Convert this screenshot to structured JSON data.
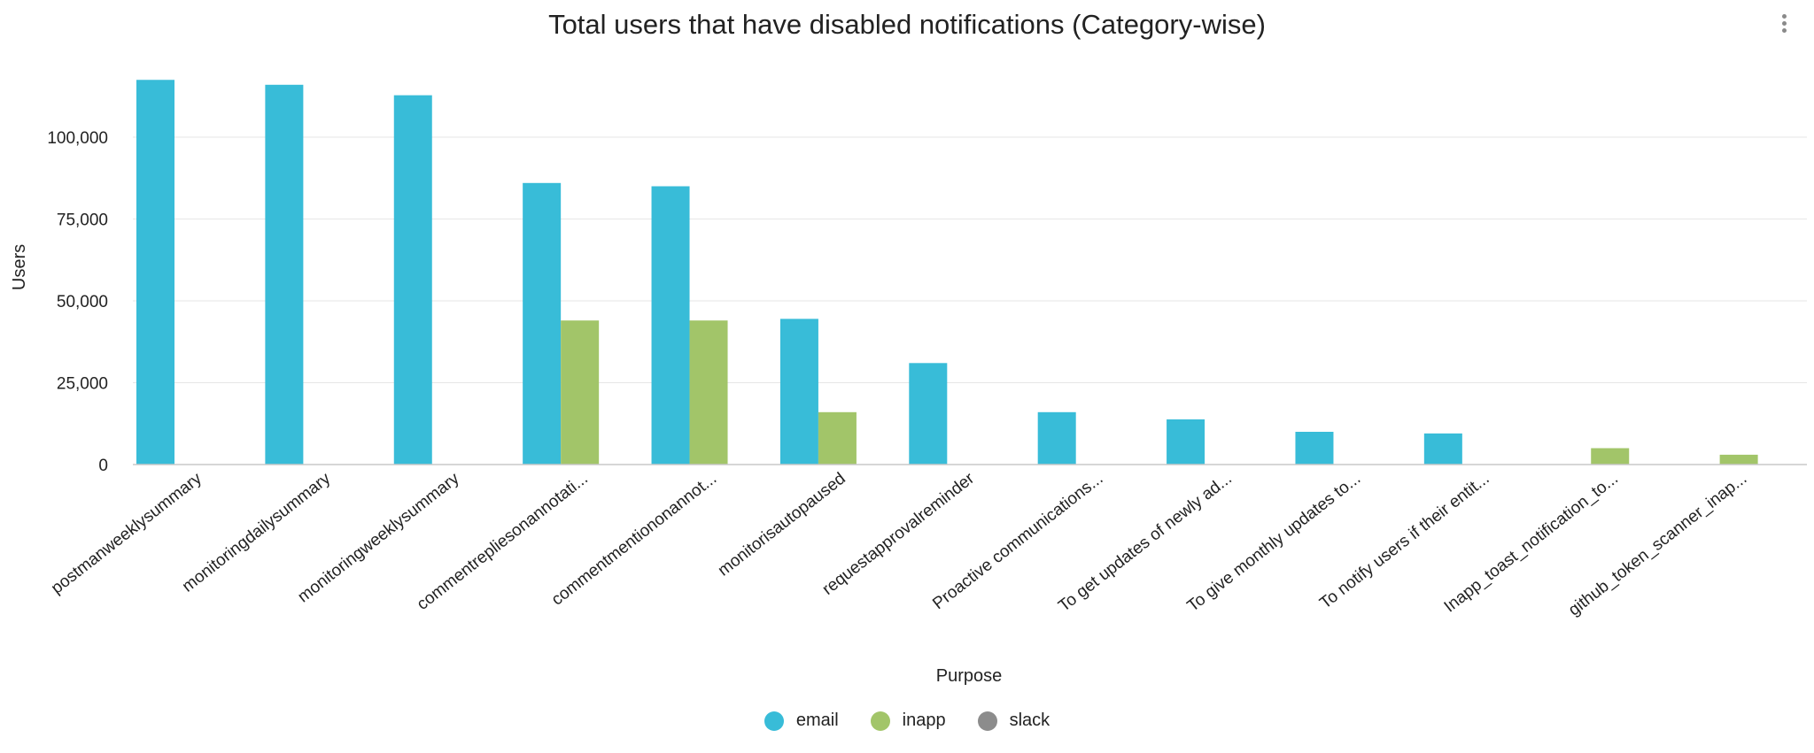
{
  "chart_data": {
    "type": "bar",
    "title": "Total users that have disabled notifications (Category-wise)",
    "xlabel": "Purpose",
    "ylabel": "Users",
    "ylim": [
      0,
      120000
    ],
    "yticks": [
      0,
      25000,
      50000,
      75000,
      100000
    ],
    "ytick_labels": [
      "0",
      "25,000",
      "50,000",
      "75,000",
      "100,000"
    ],
    "grid": true,
    "legend_position": "bottom-center",
    "categories": [
      "postmanweeklysummary",
      "monitoringdailysummary",
      "monitoringweeklysummary",
      "commentrepliesonannotati...",
      "commentmentiononannot...",
      "monitorisautopaused",
      "requestapprovalreminder",
      "Proactive communications...",
      "To get updates of newly ad...",
      "To give monthly updates to...",
      "To notify users if their entit...",
      "Inapp_toast_notification_to...",
      "github_token_scanner_inap..."
    ],
    "series": [
      {
        "name": "email",
        "color": "#38bcd8",
        "values": [
          117500,
          116000,
          112800,
          86000,
          85000,
          44500,
          31000,
          16000,
          13800,
          10000,
          9500,
          null,
          null
        ]
      },
      {
        "name": "inapp",
        "color": "#a2c569",
        "values": [
          null,
          null,
          null,
          44000,
          44000,
          null,
          null,
          null,
          null,
          null,
          null,
          null,
          null
        ]
      },
      {
        "name": "slack",
        "color": "#8c8c8c",
        "values": [
          null,
          null,
          null,
          null,
          null,
          null,
          null,
          null,
          null,
          null,
          null,
          null,
          null
        ]
      }
    ],
    "inapp_extra": [
      {
        "category_index": 5,
        "value": 16000
      },
      {
        "category_index": 11,
        "value": 5000
      },
      {
        "category_index": 12,
        "value": 3000
      }
    ]
  },
  "menu": {
    "icon": "more-vert-icon"
  }
}
